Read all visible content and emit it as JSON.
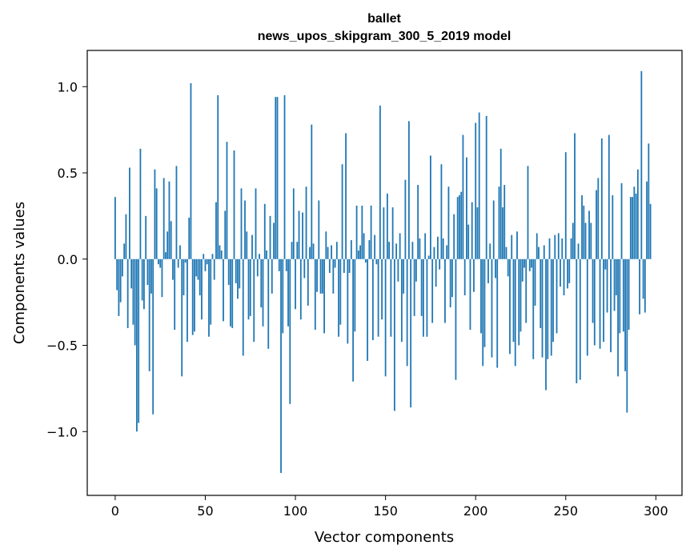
{
  "chart_data": {
    "type": "bar",
    "title": "ballet",
    "subtitle": "news_upos_skipgram_300_5_2019 model",
    "xlabel": "Vector components",
    "ylabel": "Components values",
    "xlim": [
      -15.5,
      314.5
    ],
    "ylim": [
      -1.37,
      1.21
    ],
    "grid": false,
    "bar_color": "#1f77b4",
    "x_ticks": [
      0,
      50,
      100,
      150,
      200,
      250,
      300
    ],
    "x_tick_labels": [
      "0",
      "50",
      "100",
      "150",
      "200",
      "250",
      "300"
    ],
    "y_ticks": [
      -1.0,
      -0.5,
      0.0,
      0.5,
      1.0
    ],
    "y_tick_labels": [
      "−1.0",
      "−0.5",
      "0.0",
      "0.5",
      "1.0"
    ],
    "values": [
      0.36,
      -0.18,
      -0.33,
      -0.25,
      -0.1,
      0.09,
      0.26,
      -0.4,
      0.53,
      -0.17,
      -0.38,
      -0.5,
      -1.0,
      -0.95,
      0.64,
      -0.24,
      -0.29,
      0.25,
      -0.15,
      -0.65,
      -0.2,
      -0.9,
      0.52,
      0.41,
      -0.03,
      -0.05,
      -0.22,
      0.47,
      0.04,
      0.16,
      0.45,
      0.22,
      -0.12,
      -0.41,
      0.54,
      -0.05,
      0.08,
      -0.68,
      -0.21,
      -0.02,
      -0.48,
      0.24,
      1.02,
      -0.44,
      -0.42,
      -0.1,
      -0.12,
      -0.21,
      -0.35,
      0.03,
      -0.07,
      -0.03,
      -0.45,
      -0.38,
      0.03,
      -0.12,
      0.33,
      0.95,
      0.08,
      0.05,
      -0.36,
      0.28,
      0.68,
      -0.15,
      -0.39,
      -0.4,
      0.63,
      -0.14,
      -0.23,
      -0.17,
      0.41,
      -0.56,
      0.34,
      0.16,
      -0.35,
      -0.33,
      0.14,
      -0.48,
      0.41,
      -0.1,
      0.03,
      -0.28,
      -0.39,
      0.32,
      0.05,
      -0.52,
      0.25,
      -0.2,
      0.21,
      0.94,
      0.94,
      -0.07,
      -1.24,
      -0.43,
      0.95,
      -0.07,
      -0.39,
      -0.84,
      0.1,
      0.41,
      -0.29,
      0.1,
      0.28,
      -0.35,
      0.27,
      -0.11,
      0.42,
      -0.27,
      0.07,
      0.78,
      0.09,
      -0.41,
      -0.19,
      0.34,
      -0.2,
      -0.2,
      -0.43,
      0.16,
      0.07,
      -0.08,
      0.08,
      -0.2,
      -0.05,
      0.1,
      -0.45,
      -0.38,
      0.55,
      -0.08,
      0.73,
      -0.49,
      -0.08,
      0.11,
      -0.71,
      -0.42,
      0.31,
      0.05,
      0.08,
      0.31,
      0.15,
      -0.02,
      -0.59,
      0.11,
      0.31,
      -0.47,
      0.14,
      -0.03,
      -0.45,
      0.89,
      -0.35,
      0.3,
      -0.68,
      0.38,
      0.1,
      -0.45,
      0.3,
      -0.88,
      0.09,
      -0.13,
      0.15,
      -0.48,
      -0.2,
      0.46,
      -0.62,
      0.8,
      -0.86,
      0.1,
      -0.33,
      -0.13,
      0.43,
      0.12,
      -0.33,
      -0.45,
      0.15,
      -0.45,
      0.02,
      0.6,
      -0.37,
      0.07,
      -0.16,
      0.13,
      -0.06,
      0.55,
      0.12,
      -0.37,
      0.08,
      0.42,
      -0.28,
      -0.22,
      0.26,
      -0.7,
      0.36,
      0.37,
      0.39,
      0.72,
      -0.21,
      0.59,
      0.2,
      -0.41,
      0.33,
      -0.19,
      0.79,
      0.3,
      0.85,
      -0.43,
      -0.62,
      -0.51,
      0.83,
      -0.14,
      0.09,
      -0.57,
      0.34,
      -0.11,
      -0.63,
      0.42,
      0.64,
      0.3,
      0.43,
      0.07,
      -0.1,
      -0.55,
      0.14,
      -0.48,
      -0.62,
      0.16,
      -0.5,
      -0.42,
      -0.13,
      -0.05,
      -0.37,
      0.54,
      -0.07,
      -0.05,
      -0.58,
      -0.27,
      0.15,
      0.07,
      -0.4,
      -0.57,
      0.08,
      -0.76,
      -0.58,
      0.12,
      -0.56,
      -0.48,
      0.14,
      -0.43,
      0.15,
      -0.16,
      0.12,
      -0.21,
      0.62,
      -0.17,
      -0.14,
      0.12,
      0.21,
      0.73,
      -0.72,
      0.09,
      -0.7,
      0.37,
      0.31,
      0.21,
      -0.56,
      0.28,
      0.21,
      -0.37,
      -0.5,
      0.4,
      0.47,
      -0.52,
      0.7,
      -0.48,
      -0.06,
      -0.31,
      0.72,
      -0.54,
      0.37,
      -0.3,
      -0.21,
      -0.68,
      -0.43,
      0.44,
      -0.42,
      -0.65,
      -0.89,
      -0.41,
      0.36,
      0.36,
      0.42,
      0.38,
      0.52,
      -0.32,
      1.09,
      -0.23,
      -0.31,
      0.45,
      0.67,
      0.32
    ]
  }
}
